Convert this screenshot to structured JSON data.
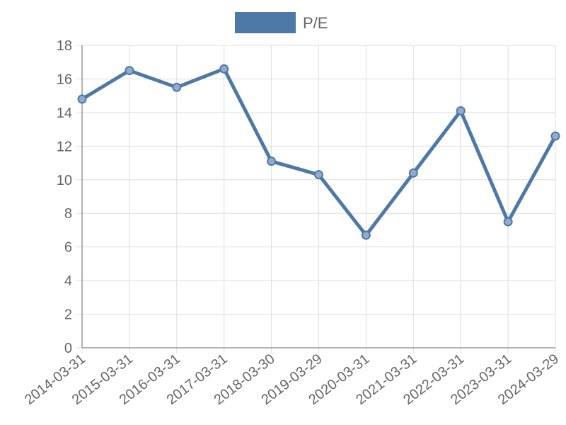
{
  "chart_data": {
    "type": "line",
    "title": "",
    "xlabel": "",
    "ylabel": "",
    "legend_position": "top",
    "grid": true,
    "ylim": [
      0,
      18
    ],
    "y_ticks": [
      "0",
      "2",
      "4",
      "6",
      "8",
      "10",
      "12",
      "14",
      "16",
      "18"
    ],
    "categories": [
      "2014-03-31",
      "2015-03-31",
      "2016-03-31",
      "2017-03-31",
      "2018-03-30",
      "2019-03-29",
      "2020-03-31",
      "2021-03-31",
      "2022-03-31",
      "2023-03-31",
      "2024-03-29"
    ],
    "series": [
      {
        "name": "P/E",
        "color": "#4e79a7",
        "values": [
          14.8,
          16.5,
          15.5,
          16.6,
          11.1,
          10.3,
          6.7,
          10.4,
          14.1,
          7.5,
          12.6
        ]
      }
    ]
  }
}
